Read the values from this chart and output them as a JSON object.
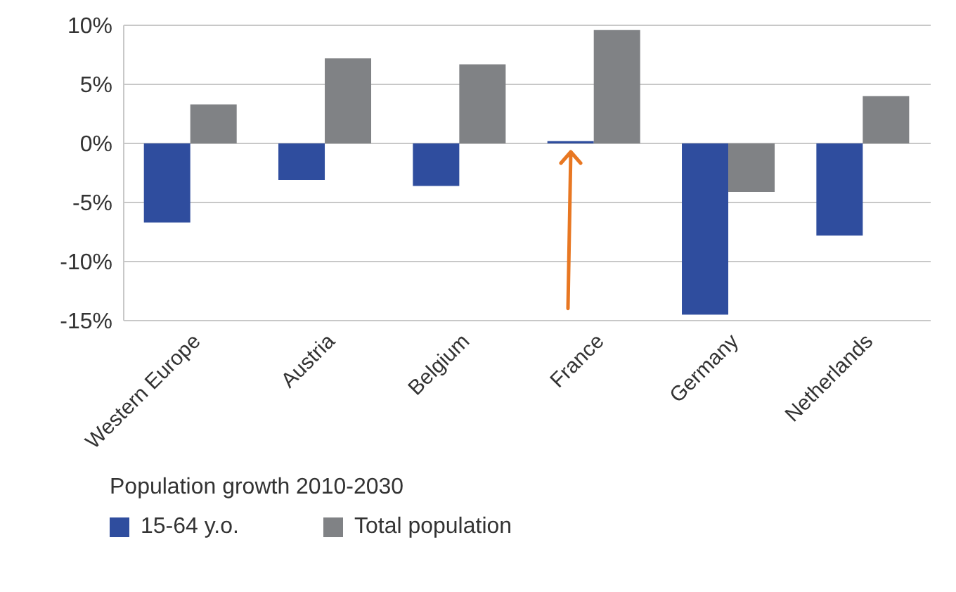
{
  "chart_data": {
    "type": "bar",
    "legend_title": "Population growth 2010-2030",
    "categories": [
      "Western Europe",
      "Austria",
      "Belgium",
      "France",
      "Germany",
      "Netherlands"
    ],
    "series": [
      {
        "name": "15-64 y.o.",
        "color": "#2f4d9e",
        "values": [
          -6.7,
          -3.1,
          -3.6,
          0.2,
          -14.5,
          -7.8
        ]
      },
      {
        "name": "Total population",
        "color": "#808285",
        "values": [
          3.3,
          7.2,
          6.7,
          9.6,
          -4.1,
          4.0
        ]
      }
    ],
    "ylim": [
      -15,
      10
    ],
    "yticks": [
      {
        "value": -15,
        "label": "-15%"
      },
      {
        "value": -10,
        "label": "-10%"
      },
      {
        "value": -5,
        "label": "-5%"
      },
      {
        "value": 0,
        "label": "0%"
      },
      {
        "value": 5,
        "label": "5%"
      },
      {
        "value": 10,
        "label": "10%"
      }
    ],
    "grid": "y",
    "legend": "bottom left"
  }
}
